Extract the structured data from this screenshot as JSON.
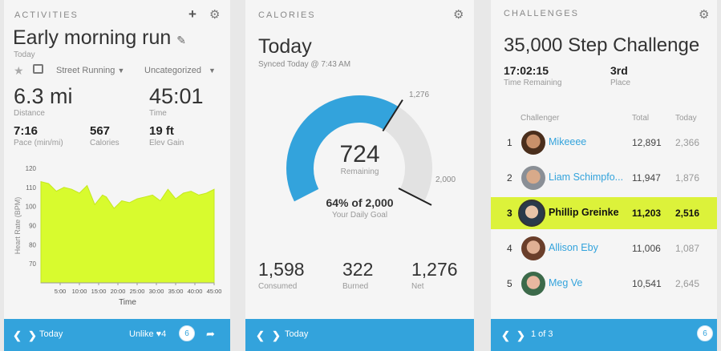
{
  "activities": {
    "header": "ACTIVITIES",
    "title": "Early morning run",
    "date": "Today",
    "type": "Street Running",
    "category": "Uncategorized",
    "distance": "6.3 mi",
    "distance_label": "Distance",
    "time": "45:01",
    "time_label": "Time",
    "pace": "7:16",
    "pace_label": "Pace (min/mi)",
    "calories": "567",
    "calories_label": "Calories",
    "elev": "19 ft",
    "elev_label": "Elev Gain",
    "footer_today": "Today",
    "footer_unlike": "Unlike",
    "footer_likes": "4",
    "footer_badge": "6"
  },
  "chart_data": {
    "type": "area",
    "ylabel": "Heart Rate (BPM)",
    "xlabel": "Time",
    "ylim": [
      60,
      120
    ],
    "yticks": [
      "120",
      "110",
      "100",
      "90",
      "80",
      "70"
    ],
    "xticks": [
      "5:00",
      "10:00",
      "15:00",
      "20:00",
      "25:00",
      "30:00",
      "35:00",
      "40:00",
      "45:00"
    ],
    "x": [
      0,
      2,
      4,
      6,
      8,
      10,
      12,
      14,
      16,
      17,
      19,
      21,
      23,
      25,
      27,
      29,
      31,
      33,
      35,
      37,
      39,
      41,
      43,
      45
    ],
    "values": [
      113,
      112,
      108,
      110,
      109,
      107,
      111,
      101,
      106,
      105,
      99,
      103,
      102,
      104,
      105,
      106,
      103,
      109,
      104,
      107,
      108,
      106,
      107,
      109
    ],
    "color": "#d8fb2e"
  },
  "calories": {
    "header": "CALORIES",
    "title": "Today",
    "synced": "Synced Today @ 7:43 AM",
    "remaining": "724",
    "remaining_label": "Remaining",
    "mark_value": "1,276",
    "end_value": "2,000",
    "progress_fraction": 0.638,
    "goal_text": "64% of 2,000",
    "goal_label": "Your Daily Goal",
    "consumed": "1,598",
    "consumed_label": "Consumed",
    "burned": "322",
    "burned_label": "Burned",
    "net": "1,276",
    "net_label": "Net",
    "footer_today": "Today",
    "accent": "#33a3dc"
  },
  "challenges": {
    "header": "CHALLENGES",
    "title": "35,000 Step Challenge",
    "time_remaining": "17:02:15",
    "time_remaining_label": "Time Remaining",
    "place": "3rd",
    "place_label": "Place",
    "col_challenger": "Challenger",
    "col_total": "Total",
    "col_today": "Today",
    "rows": [
      {
        "rank": "1",
        "name": "Mikeeee",
        "total": "12,891",
        "today": "2,366"
      },
      {
        "rank": "2",
        "name": "Liam Schimpfo...",
        "total": "11,947",
        "today": "1,876"
      },
      {
        "rank": "3",
        "name": "Phillip Greinke",
        "total": "11,203",
        "today": "2,516"
      },
      {
        "rank": "4",
        "name": "Allison Eby",
        "total": "11,006",
        "today": "1,087"
      },
      {
        "rank": "5",
        "name": "Meg Ve",
        "total": "10,541",
        "today": "2,645"
      }
    ],
    "footer_page": "1 of 3",
    "footer_badge": "6",
    "highlight": "#dcf23a"
  }
}
